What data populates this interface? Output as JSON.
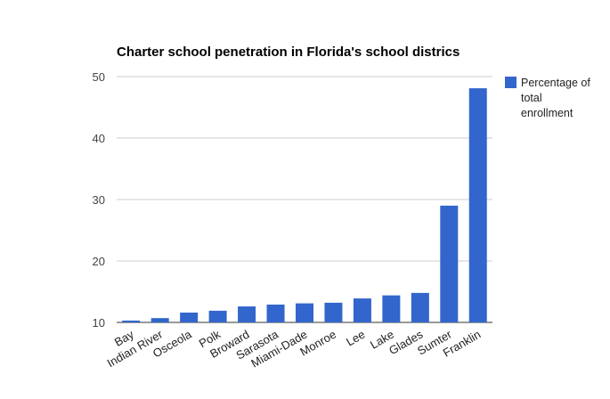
{
  "chart_data": {
    "type": "bar",
    "title": "Charter school penetration in Florida's school districs",
    "categories": [
      "Bay",
      "Indian River",
      "Osceola",
      "Polk",
      "Broward",
      "Sarasota",
      "Miami-Dade",
      "Monroe",
      "Lee",
      "Lake",
      "Glades",
      "Sumter",
      "Franklin"
    ],
    "series": [
      {
        "name": "Percentage of total enrollment",
        "values": [
          10.3,
          10.7,
          11.6,
          11.9,
          12.6,
          12.9,
          13.1,
          13.2,
          13.9,
          14.4,
          14.8,
          29.0,
          48.1
        ]
      }
    ],
    "legend_lines": [
      "Percentage of",
      "total",
      "enrollment"
    ],
    "ylim": [
      10,
      50
    ],
    "yticks": [
      "10",
      "20",
      "30",
      "40",
      "50"
    ],
    "grid": true,
    "legend_position": "right",
    "colors": {
      "bar": "#3366cc",
      "grid": "#cccccc",
      "axis": "#333333"
    }
  }
}
